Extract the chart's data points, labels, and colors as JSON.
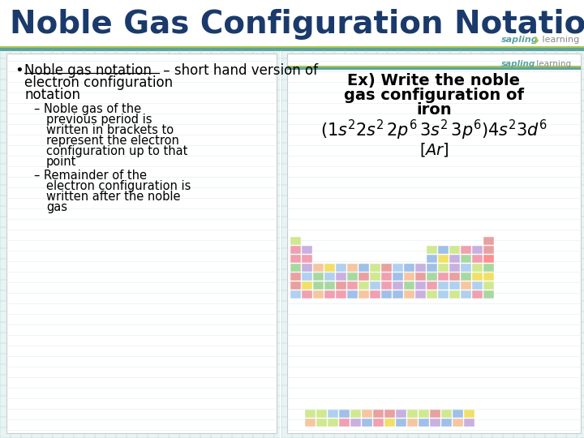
{
  "title": "Noble Gas Configuration Notation",
  "title_color": "#1a3a6b",
  "title_fontsize": 28,
  "bg_color": "#ffffff",
  "header_bar_color1": "#5ba3a0",
  "header_bar_color2": "#a8c84a",
  "grid_color": "#c8dde0",
  "sapling_color": "#5ba3a0",
  "bullet_underline_text": "Noble gas notation",
  "bullet_rest": " – short hand version of",
  "bullet_line2": "electron configuration",
  "bullet_line3": "notation",
  "sub1_lines": [
    "– Noble gas of the",
    "previous period is",
    "written in brackets to",
    "represent the electron",
    "configuration up to that",
    "point"
  ],
  "sub2_lines": [
    "– Remainder of the",
    "electron configuration is",
    "written after the noble",
    "gas"
  ],
  "ex_line1": "Ex) Write the noble",
  "ex_line2": "gas configuration of",
  "ex_line3": "iron",
  "ex_config": "$(1s^{2}2s^{2}\\,2p^{6}\\,3s^{2}\\,3p^{6})4s^{2}3d^{6}$",
  "ex_answer": "$[Ar]$",
  "pt_colors": [
    "#f5c6a0",
    "#a8d8a0",
    "#a0c0e8",
    "#e8a0a0",
    "#c8b0e0",
    "#f0e068",
    "#d0e890",
    "#f0a0b0",
    "#b0d0f0"
  ]
}
